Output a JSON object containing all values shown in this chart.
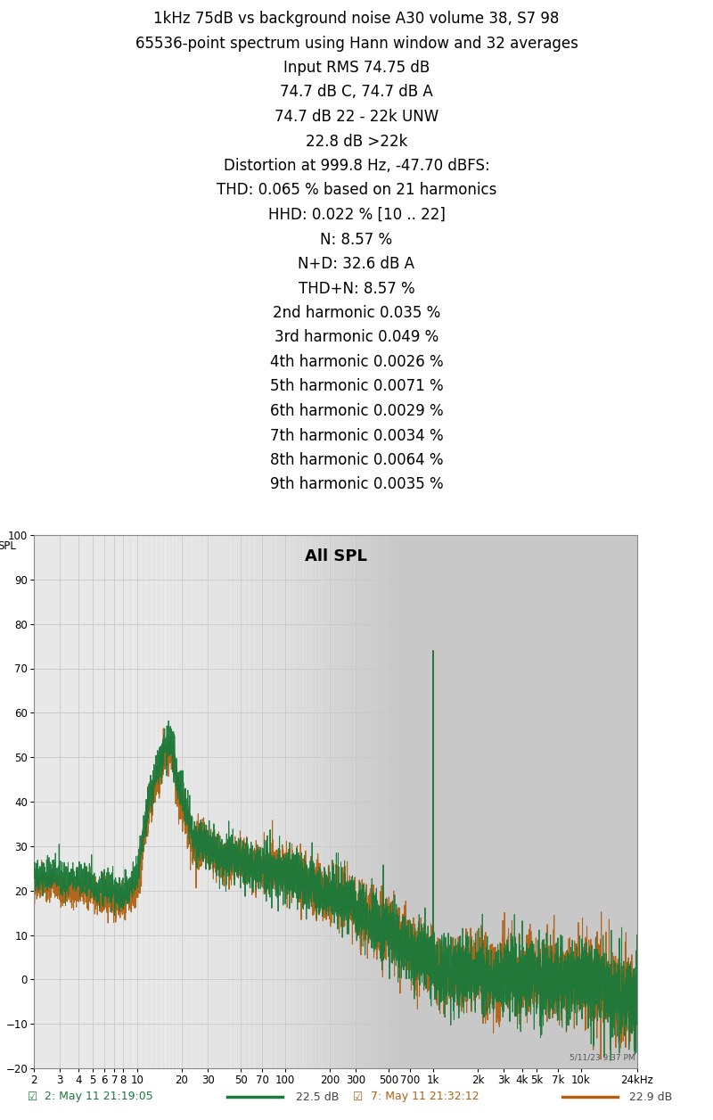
{
  "title_lines": [
    "1kHz 75dB vs background noise A30 volume 38, S7 98",
    "65536-point spectrum using Hann window and 32 averages",
    "Input RMS 74.75 dB",
    "74.7 dB C, 74.7 dB A",
    "74.7 dB 22 - 22k UNW",
    "22.8 dB >22k",
    "Distortion at 999.8 Hz, -47.70 dBFS:",
    "THD: 0.065 % based on 21 harmonics",
    "HHD: 0.022 % [10 .. 22]",
    "N: 8.57 %",
    "N+D: 32.6 dB A",
    "THD+N: 8.57 %",
    "2nd harmonic 0.035 %",
    "3rd harmonic 0.049 %",
    "4th harmonic 0.0026 %",
    "5th harmonic 0.0071 %",
    "6th harmonic 0.0029 %",
    "7th harmonic 0.0034 %",
    "8th harmonic 0.0064 %",
    "9th harmonic 0.0035 %"
  ],
  "plot_title": "All SPL",
  "ylabel": "SPL",
  "ylim": [
    -20,
    100
  ],
  "yticks": [
    -20,
    -10,
    0,
    10,
    20,
    30,
    40,
    50,
    60,
    70,
    80,
    90,
    100
  ],
  "xmin": 2,
  "xmax": 24000,
  "xtick_positions": [
    2,
    3,
    4,
    5,
    6,
    7,
    8,
    10,
    20,
    30,
    50,
    70,
    100,
    200,
    300,
    500,
    700,
    1000,
    2000,
    3000,
    4000,
    5000,
    7000,
    10000,
    24000
  ],
  "xtick_labels": [
    "2",
    "3",
    "4",
    "5",
    "6",
    "7",
    "8",
    "10",
    "20",
    "30",
    "50",
    "70",
    "100",
    "200",
    "300",
    "500",
    "700",
    "1k",
    "2k",
    "3k",
    "4k",
    "5k",
    "7k",
    "10k",
    "24kHz"
  ],
  "color_green": "#1a7a3a",
  "color_orange": "#b06010",
  "timestamp": "5/11/23 9:37 PM",
  "legend1_label": "2: May 11 21:19:05",
  "legend1_value": "22.5 dB",
  "legend2_label": "7: May 11 21:32:12",
  "legend2_value": "22.9 dB",
  "bg_color": "#e8e8e8",
  "grid_color": "#c8c8c8",
  "fig_bg": "#ffffff",
  "title_fontsize": 12,
  "tick_fontsize": 8.5
}
